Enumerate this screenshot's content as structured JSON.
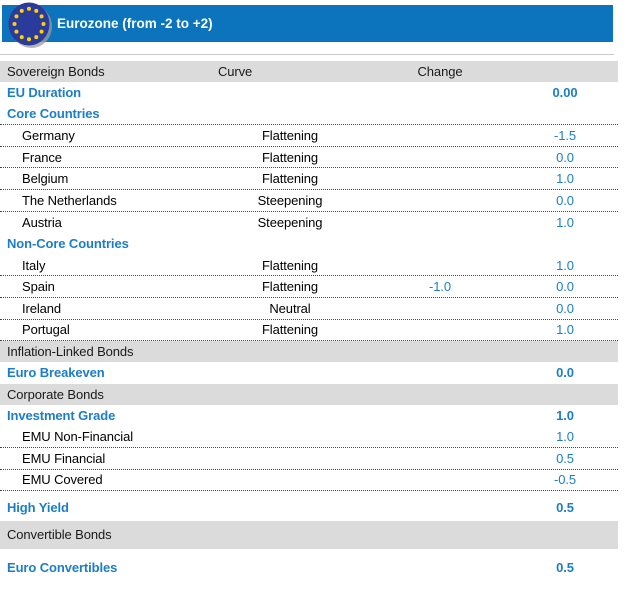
{
  "banner": {
    "title": "Eurozone (from -2 to +2)",
    "flag_icon": "eu-flag-icon"
  },
  "colors": {
    "banner_blue": "#0B74BC",
    "accent_blue": "#1B7EC6",
    "band_gray": "#DBDBDB",
    "flag_navy": "#2B3B9B",
    "flag_star_yellow": "#FFD200"
  },
  "columns": {
    "name": "Sovereign Bonds",
    "curve": "Curve",
    "change": "Change"
  },
  "table": {
    "rows": [
      {
        "type": "header",
        "label": "Sovereign Bonds",
        "curve": "Curve",
        "change": "Change"
      },
      {
        "type": "group",
        "label": "EU Duration",
        "value": "0.00"
      },
      {
        "type": "group",
        "label": "Core Countries",
        "dotted": true
      },
      {
        "type": "item",
        "label": "Germany",
        "curve": "Flattening",
        "value": "-1.5",
        "dotted": true
      },
      {
        "type": "item",
        "label": "France",
        "curve": "Flattening",
        "value": "0.0",
        "dotted": true
      },
      {
        "type": "item",
        "label": "Belgium",
        "curve": "Flattening",
        "value": "1.0",
        "dotted": true
      },
      {
        "type": "item",
        "label": "The Netherlands",
        "curve": "Steepening",
        "value": "0.0",
        "dotted": true
      },
      {
        "type": "item",
        "label": "Austria",
        "curve": "Steepening",
        "value": "1.0"
      },
      {
        "type": "group",
        "label": "Non-Core Countries"
      },
      {
        "type": "item",
        "label": "Italy",
        "curve": "Flattening",
        "value": "1.0",
        "dotted": true
      },
      {
        "type": "item",
        "label": "Spain",
        "curve": "Flattening",
        "change": "-1.0",
        "value": "0.0",
        "dotted": true
      },
      {
        "type": "item",
        "label": "Ireland",
        "curve": "Neutral",
        "value": "0.0",
        "dotted": true
      },
      {
        "type": "item",
        "label": "Portugal",
        "curve": "Flattening",
        "value": "1.0",
        "dotted": true
      },
      {
        "type": "band",
        "label": "Inflation-Linked Bonds"
      },
      {
        "type": "group",
        "label": "Euro Breakeven",
        "value": "0.0"
      },
      {
        "type": "band",
        "label": "Corporate Bonds"
      },
      {
        "type": "group",
        "label": "Investment Grade",
        "value": "1.0"
      },
      {
        "type": "item",
        "label": "EMU Non-Financial",
        "value": "1.0",
        "dotted": true
      },
      {
        "type": "item",
        "label": "EMU Financial",
        "value": "0.5",
        "dotted": true
      },
      {
        "type": "item",
        "label": "EMU Covered",
        "value": "-0.5",
        "dotted": true
      },
      {
        "type": "spacer",
        "variant": "small"
      },
      {
        "type": "group",
        "label": "High Yield",
        "value": "0.5"
      },
      {
        "type": "spacer",
        "variant": "tiny"
      },
      {
        "type": "band",
        "label": "Convertible Bonds",
        "variant": "tall"
      },
      {
        "type": "spacer",
        "variant": "medium"
      },
      {
        "type": "group",
        "label": "Euro Convertibles",
        "value": "0.5"
      }
    ]
  }
}
